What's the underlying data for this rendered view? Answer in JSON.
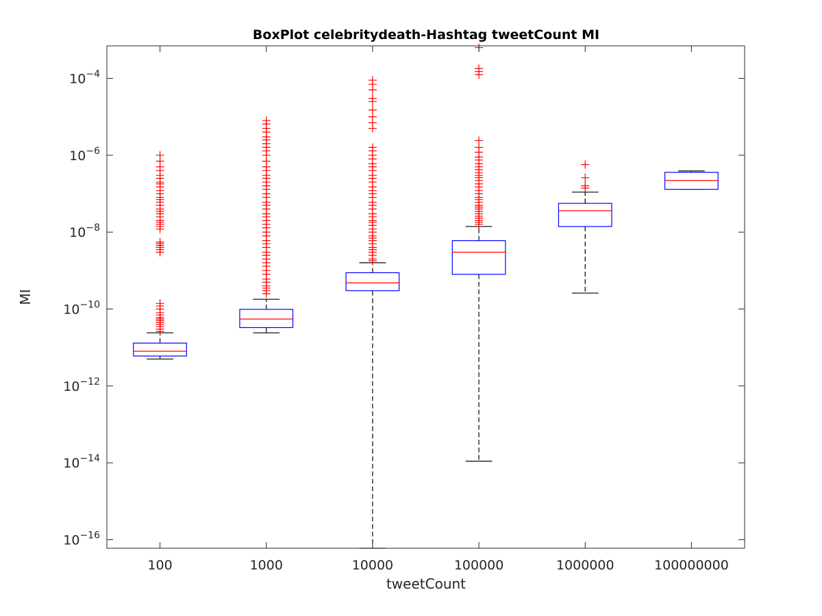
{
  "chart_data": {
    "type": "box",
    "title": "BoxPlot celebritydeath-Hashtag tweetCount MI",
    "xlabel": "tweetCount",
    "ylabel": "MI",
    "yscale": "log",
    "ylim": [
      6e-17,
      0.0007
    ],
    "ytick_exponents": [
      -16,
      -14,
      -12,
      -10,
      -8,
      -6,
      -4
    ],
    "categories": [
      "100",
      "1000",
      "10000",
      "100000",
      "1000000",
      "100000000"
    ],
    "colors": {
      "box": "#0000ff",
      "median": "#ff0000",
      "whisker": "#000000",
      "outlier": "#ff0000",
      "axes": "#262626"
    },
    "boxes": [
      {
        "category": "100",
        "whisker_low": 5e-12,
        "q1": 6e-12,
        "median": 8e-12,
        "q3": 1.3e-11,
        "whisker_high": 2.4e-11,
        "outliers": [
          2.6e-11,
          3e-11,
          3.5e-11,
          4e-11,
          4.5e-11,
          5e-11,
          5.5e-11,
          6e-11,
          7e-11,
          8e-11,
          1e-10,
          1.2e-10,
          1.4e-10,
          3e-09,
          3.5e-09,
          4e-09,
          4.5e-09,
          5e-09,
          5.5e-09,
          1.2e-08,
          1.4e-08,
          1.6e-08,
          1.8e-08,
          2e-08,
          2.5e-08,
          3e-08,
          3.5e-08,
          4e-08,
          5e-08,
          6e-08,
          7e-08,
          8e-08,
          1e-07,
          1.2e-07,
          1.5e-07,
          1.8e-07,
          2e-07,
          2.5e-07,
          3e-07,
          4e-07,
          5e-07,
          7e-07,
          1e-06
        ]
      },
      {
        "category": "1000",
        "whisker_low": 2.4e-11,
        "q1": 3.3e-11,
        "median": 5.5e-11,
        "q3": 9.8e-11,
        "whisker_high": 1.8e-10,
        "outliers": [
          2.5e-10,
          3e-10,
          3.5e-10,
          4e-10,
          5e-10,
          6e-10,
          8e-10,
          1e-09,
          1.3e-09,
          1.6e-09,
          2e-09,
          2.5e-09,
          3e-09,
          4e-09,
          5e-09,
          6e-09,
          8e-09,
          1e-08,
          1.3e-08,
          1.6e-08,
          2e-08,
          2.5e-08,
          3e-08,
          4e-08,
          5e-08,
          6e-08,
          8e-08,
          1e-07,
          1.3e-07,
          1.6e-07,
          2e-07,
          2.5e-07,
          3e-07,
          4e-07,
          5e-07,
          7e-07,
          1e-06,
          1.3e-06,
          1.6e-06,
          2e-06,
          2.5e-06,
          3e-06,
          4e-06,
          5e-06,
          6.5e-06,
          8e-06
        ]
      },
      {
        "category": "10000",
        "whisker_low": 6e-17,
        "q1": 3e-10,
        "median": 4.8e-10,
        "q3": 8.8e-10,
        "whisker_high": 1.6e-09,
        "outliers": [
          1.8e-09,
          2e-09,
          2.5e-09,
          3e-09,
          3.5e-09,
          4e-09,
          5e-09,
          6e-09,
          7e-09,
          8e-09,
          1e-08,
          1.2e-08,
          1.5e-08,
          1.8e-08,
          2e-08,
          2.5e-08,
          3e-08,
          4e-08,
          5e-08,
          6e-08,
          8e-08,
          1e-07,
          1.2e-07,
          1.5e-07,
          2e-07,
          2.5e-07,
          3e-07,
          4e-07,
          5e-07,
          6e-07,
          8e-07,
          1e-06,
          1.3e-06,
          1.6e-06,
          5e-06,
          7e-06,
          1e-05,
          1.5e-05,
          2.5e-05,
          3e-05,
          5e-05,
          7e-05,
          9e-05
        ]
      },
      {
        "category": "100000",
        "whisker_low": 1.1e-14,
        "q1": 8e-10,
        "median": 3e-09,
        "q3": 6e-09,
        "whisker_high": 1.4e-08,
        "outliers": [
          1.6e-08,
          1.8e-08,
          2e-08,
          2.3e-08,
          2.6e-08,
          3e-08,
          3.5e-08,
          4e-08,
          4.5e-08,
          5e-08,
          6e-08,
          7e-08,
          8e-08,
          1e-07,
          1.2e-07,
          1.5e-07,
          1.8e-07,
          2.2e-07,
          2.6e-07,
          3e-07,
          3.5e-07,
          4.2e-07,
          5e-07,
          6e-07,
          7.5e-07,
          9e-07,
          1.2e-06,
          1.6e-06,
          2.4e-06,
          0.000125,
          0.00015,
          0.00018,
          0.00063
        ]
      },
      {
        "category": "1000000",
        "whisker_low": 2.6e-10,
        "q1": 1.4e-08,
        "median": 3.6e-08,
        "q3": 5.6e-08,
        "whisker_high": 1.1e-07,
        "outliers": [
          1.4e-07,
          1.6e-07,
          2.6e-07,
          5.7e-07
        ]
      },
      {
        "category": "100000000",
        "whisker_low": 1.3e-07,
        "q1": 1.3e-07,
        "median": 2.2e-07,
        "q3": 3.6e-07,
        "whisker_high": 3.9e-07,
        "outliers": []
      }
    ]
  }
}
